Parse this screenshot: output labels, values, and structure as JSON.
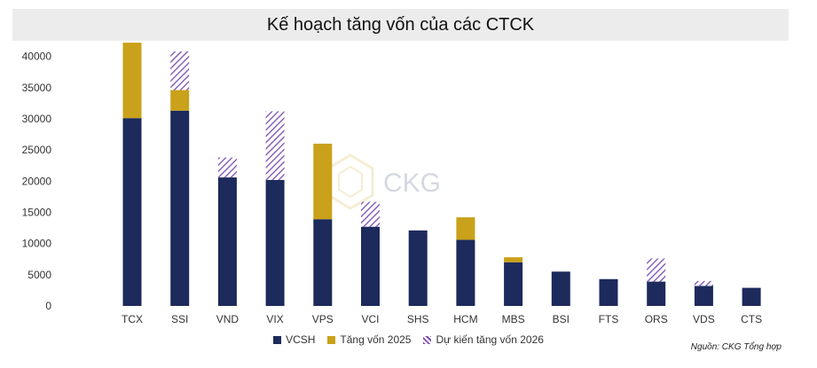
{
  "title": "Kế hoạch tăng vốn của các CTCK",
  "source": "Nguồn: CKG Tổng hợp",
  "watermark": "CKG",
  "chart_data": {
    "type": "bar",
    "stacked": true,
    "categories": [
      "TCX",
      "SSI",
      "VND",
      "VIX",
      "VPS",
      "VCI",
      "SHS",
      "HCM",
      "MBS",
      "BSI",
      "FTS",
      "ORS",
      "VDS",
      "CTS"
    ],
    "series": [
      {
        "name": "VCSH",
        "color": "#1c2a5c",
        "pattern": "solid",
        "values": [
          30100,
          31300,
          20600,
          20200,
          13900,
          12700,
          12100,
          10600,
          7000,
          5500,
          4300,
          3900,
          3200,
          2900
        ]
      },
      {
        "name": "Tăng vốn 2025",
        "color": "#c9a11a",
        "pattern": "solid",
        "values": [
          12100,
          3300,
          0,
          0,
          12100,
          0,
          0,
          3600,
          800,
          0,
          0,
          0,
          0,
          0
        ]
      },
      {
        "name": "Dự kiến tăng vốn 2026",
        "color": "#7b4fb0",
        "pattern": "hatch",
        "values": [
          0,
          6200,
          3200,
          11000,
          0,
          4000,
          0,
          0,
          0,
          0,
          0,
          3700,
          800,
          0
        ]
      }
    ],
    "yticks": [
      0,
      5000,
      10000,
      15000,
      20000,
      25000,
      30000,
      35000,
      40000
    ],
    "ylim": [
      0,
      42000
    ],
    "grid": false,
    "legend_position": "bottom"
  }
}
